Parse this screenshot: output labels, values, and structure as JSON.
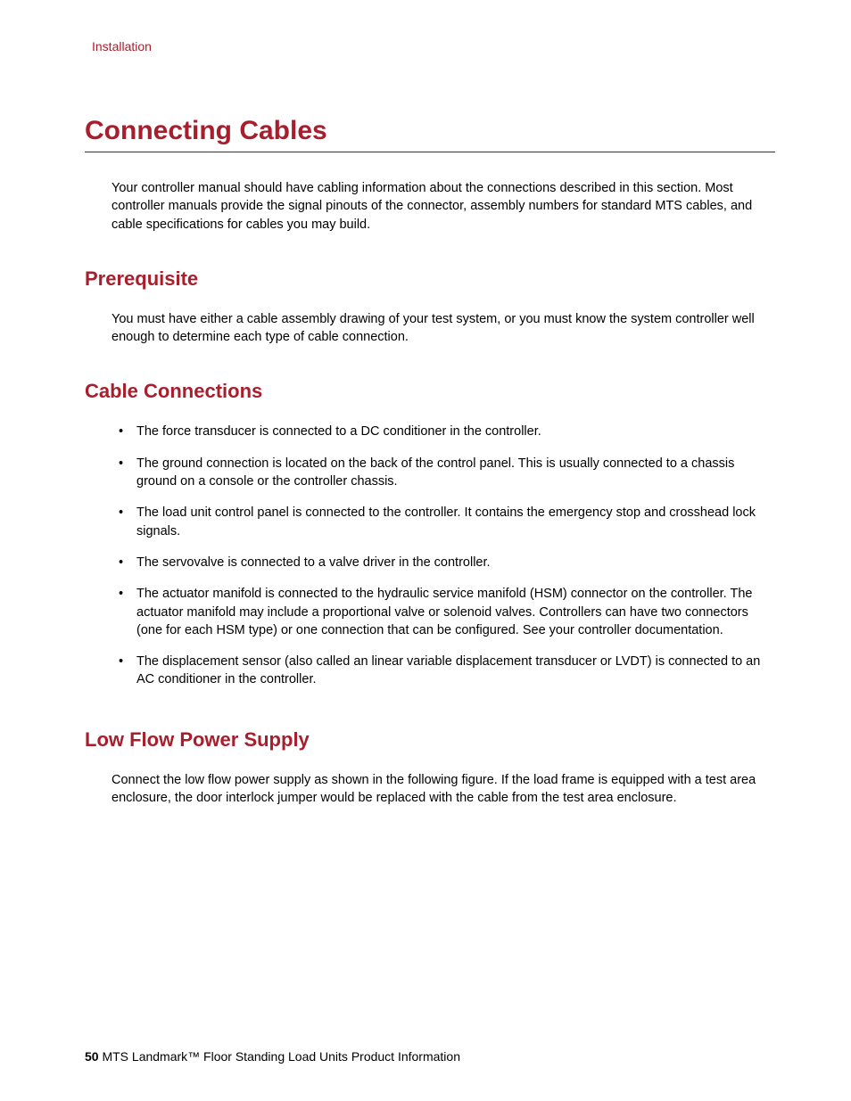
{
  "colors": {
    "accent": "#a81e2d",
    "text": "#000000",
    "background": "#ffffff",
    "rule": "#333333"
  },
  "typography": {
    "body_fontsize": 14.5,
    "header_fontsize": 14,
    "h1_fontsize": 30,
    "h2_fontsize": 22,
    "footer_fontsize": 14,
    "font_family": "Arial, Helvetica, sans-serif"
  },
  "header": {
    "section_label": "Installation"
  },
  "title": "Connecting Cables",
  "intro": "Your controller manual should have cabling information about the connections described in this section. Most controller manuals provide the signal pinouts of the connector, assembly numbers for standard MTS cables, and cable specifications for cables you may build.",
  "sections": {
    "prerequisite": {
      "heading": "Prerequisite",
      "body": "You must have either a cable assembly drawing of your test system, or you must know the system controller well enough to determine each type of cable connection."
    },
    "cable_connections": {
      "heading": "Cable Connections",
      "bullets": [
        "The force transducer is connected to a DC conditioner in the controller.",
        "The ground connection is located on the back of the control panel. This is usually connected to a chassis ground on a console or the controller chassis.",
        "The load unit control panel is connected to the controller. It contains the emergency stop and crosshead lock signals.",
        "The servovalve is connected to a valve driver in the controller.",
        "The actuator manifold is connected to the hydraulic service manifold (HSM) connector on the controller. The actuator manifold may include a proportional valve or solenoid valves. Controllers can have two connectors (one for each HSM type) or one connection that can be configured. See your controller documentation.",
        "The displacement sensor (also called an linear variable displacement transducer or LVDT) is connected to an AC conditioner in the controller."
      ]
    },
    "low_flow": {
      "heading": "Low Flow Power Supply",
      "body": "Connect the low flow power supply as shown in the following figure. If the load frame is equipped with a test area enclosure, the door interlock jumper would be replaced with the cable from the test area enclosure."
    }
  },
  "footer": {
    "page_number": "50",
    "doc_title": "MTS Landmark™ Floor Standing Load Units Product Information"
  }
}
